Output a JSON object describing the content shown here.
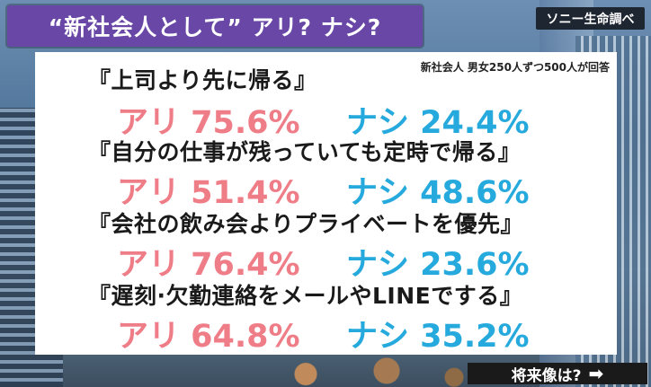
{
  "title": "“新社会人として” アリ? ナシ?",
  "source": "ソニー生命調べ",
  "note": "新社会人 男女250人ずつ500人が回答",
  "items": [
    {
      "question": "『上司より先に帰る』",
      "ari": "アリ 75.6%",
      "nashi": "ナシ 24.4%"
    },
    {
      "question": "『自分の仕事が残っていても定時で帰る』",
      "ari": "アリ 51.4%",
      "nashi": "ナシ 48.6%"
    },
    {
      "question": "『会社の飲み会よりプライベートを優先』",
      "ari": "アリ 76.4%",
      "nashi": "ナシ 23.6%"
    },
    {
      "question": "『遅刻·欠勤連絡をメールやLINEでする』",
      "ari": "アリ 64.8%",
      "nashi": "ナシ 35.2%"
    }
  ],
  "next_label": "将来像は?",
  "arrow_icon": "arrow-right-icon",
  "colors": {
    "ari": "#ef7d87",
    "nashi": "#26a9dc",
    "title_bg": "#6847a6"
  }
}
